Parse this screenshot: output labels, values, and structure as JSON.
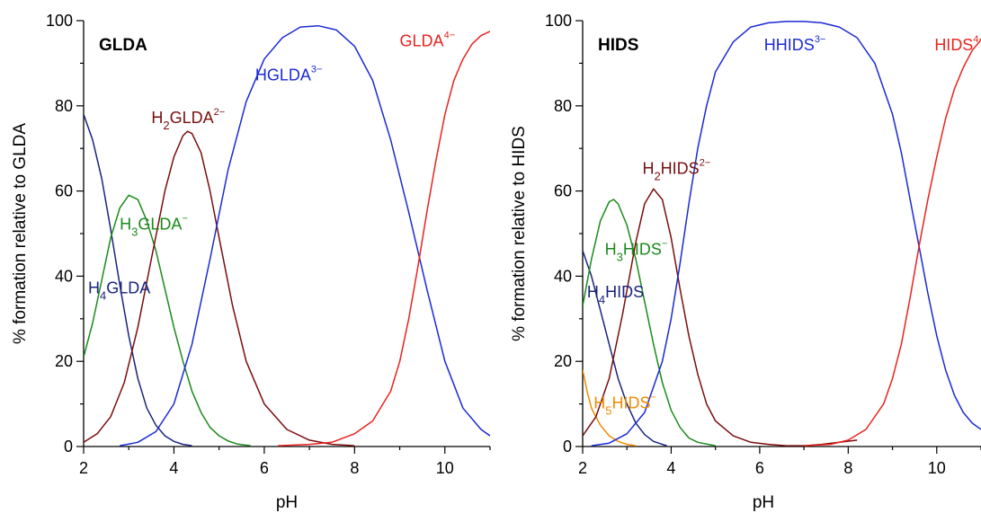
{
  "chart_data": [
    {
      "type": "line",
      "title": "GLDA",
      "xlabel": "pH",
      "ylabel": "% formation relative to GLDA",
      "xlim": [
        2,
        11
      ],
      "ylim": [
        0,
        100
      ],
      "xticks": [
        "2",
        "4",
        "6",
        "8",
        "10"
      ],
      "yticks": [
        "0",
        "20",
        "40",
        "60",
        "80",
        "100"
      ],
      "grid": false,
      "legend": "inline labels",
      "series": [
        {
          "name": "H4GLDA",
          "label_base": "H",
          "label_sub": "4",
          "label_main": "GLDA",
          "label_sup": "",
          "color": "#1a237e",
          "label_at": [
            2.1,
            36
          ],
          "x": [
            2.0,
            2.2,
            2.4,
            2.6,
            2.8,
            3.0,
            3.2,
            3.4,
            3.6,
            3.8,
            4.0,
            4.2,
            4.4
          ],
          "y": [
            78,
            72,
            63,
            51,
            38,
            26,
            16,
            9,
            5,
            2.5,
            1.2,
            0.5,
            0.2
          ]
        },
        {
          "name": "H3GLDA-",
          "label_base": "H",
          "label_sub": "3",
          "label_main": "GLDA",
          "label_sup": "−",
          "color": "#1b8a1b",
          "label_at": [
            2.8,
            51
          ],
          "x": [
            2.0,
            2.2,
            2.4,
            2.6,
            2.8,
            3.0,
            3.2,
            3.4,
            3.6,
            3.8,
            4.0,
            4.2,
            4.4,
            4.6,
            4.8,
            5.0,
            5.2,
            5.4,
            5.7
          ],
          "y": [
            21,
            29,
            39,
            49,
            56,
            59,
            58,
            53,
            46,
            37,
            28,
            20,
            13,
            8,
            4.5,
            2.5,
            1.3,
            0.6,
            0.2
          ]
        },
        {
          "name": "H2GLDA2-",
          "label_base": "H",
          "label_sub": "2",
          "label_main": "GLDA",
          "label_sup": "2−",
          "color": "#7a0d0d",
          "label_at": [
            3.5,
            76
          ],
          "x": [
            2.0,
            2.3,
            2.6,
            2.9,
            3.2,
            3.5,
            3.8,
            4.0,
            4.2,
            4.3,
            4.4,
            4.6,
            4.8,
            5.0,
            5.3,
            5.6,
            6.0,
            6.5,
            7.0,
            7.5,
            8.0
          ],
          "y": [
            1,
            3,
            7,
            15,
            28,
            44,
            60,
            68,
            73,
            74,
            73.5,
            69,
            60,
            49,
            33,
            20,
            10,
            4,
            1.5,
            0.5,
            0.2
          ]
        },
        {
          "name": "HGLDA3-",
          "label_base": "HGLDA",
          "label_sub": "",
          "label_main": "",
          "label_sup": "3−",
          "color": "#1a2ad4",
          "label_at": [
            5.8,
            86
          ],
          "x": [
            2.8,
            3.2,
            3.6,
            4.0,
            4.4,
            4.8,
            5.2,
            5.6,
            6.0,
            6.4,
            6.8,
            7.2,
            7.6,
            8.0,
            8.4,
            8.8,
            9.2,
            9.6,
            10.0,
            10.4,
            10.8,
            11.0
          ],
          "y": [
            0.2,
            1,
            3.5,
            10,
            24,
            44,
            65,
            81,
            91,
            96,
            98.5,
            98.8,
            97.8,
            94,
            86,
            72,
            55,
            37,
            20,
            9,
            4,
            2.5
          ]
        },
        {
          "name": "GLDA4-",
          "label_base": "GLDA",
          "label_sub": "",
          "label_main": "",
          "label_sup": "4−",
          "color": "#e8231e",
          "label_at": [
            9.0,
            94
          ],
          "x": [
            6.3,
            7.0,
            7.5,
            8.0,
            8.4,
            8.8,
            9.0,
            9.2,
            9.4,
            9.6,
            9.8,
            10.0,
            10.2,
            10.4,
            10.6,
            10.8,
            11.0
          ],
          "y": [
            0.2,
            0.5,
            1,
            3,
            6,
            13,
            20,
            30,
            42,
            55,
            67,
            78,
            86,
            91,
            94.5,
            96.5,
            97.5
          ]
        }
      ]
    },
    {
      "type": "line",
      "title": "HIDS",
      "xlabel": "pH",
      "ylabel": "% formation relative to HIDS",
      "xlim": [
        2,
        11
      ],
      "ylim": [
        0,
        100
      ],
      "xticks": [
        "2",
        "4",
        "6",
        "8",
        "10"
      ],
      "yticks": [
        "0",
        "20",
        "40",
        "60",
        "80",
        "100"
      ],
      "grid": false,
      "legend": "inline labels",
      "series": [
        {
          "name": "H5HIDS-",
          "label_base": "H",
          "label_sub": "5",
          "label_main": "HIDS",
          "label_sup": "−",
          "color": "#f08a00",
          "label_at": [
            2.25,
            9
          ],
          "x": [
            2.0,
            2.1,
            2.2,
            2.4,
            2.6,
            2.8,
            3.0,
            3.2
          ],
          "y": [
            18,
            13,
            9,
            5,
            2.5,
            1.2,
            0.5,
            0.2
          ]
        },
        {
          "name": "H4HIDS",
          "label_base": "H",
          "label_sub": "4",
          "label_main": "HIDS",
          "label_sup": "",
          "color": "#1a237e",
          "label_at": [
            2.1,
            35
          ],
          "x": [
            2.0,
            2.2,
            2.4,
            2.6,
            2.8,
            3.0,
            3.2,
            3.4,
            3.6,
            3.8,
            3.9
          ],
          "y": [
            46,
            40,
            32,
            24,
            16,
            10,
            5.5,
            2.8,
            1.2,
            0.5,
            0.2
          ]
        },
        {
          "name": "H3HIDS-",
          "label_base": "H",
          "label_sub": "3",
          "label_main": "HIDS",
          "label_sup": "−",
          "color": "#1b8a1b",
          "label_at": [
            2.5,
            45
          ],
          "x": [
            2.0,
            2.2,
            2.4,
            2.6,
            2.7,
            2.8,
            3.0,
            3.2,
            3.4,
            3.6,
            3.8,
            4.0,
            4.2,
            4.4,
            4.6,
            5.0
          ],
          "y": [
            33,
            44,
            53,
            57.5,
            58,
            57,
            52,
            44,
            34,
            24,
            15,
            8.5,
            4.5,
            2,
            1,
            0.2
          ]
        },
        {
          "name": "H2HIDS2-",
          "label_base": "H",
          "label_sub": "2",
          "label_main": "HIDS",
          "label_sup": "2−",
          "color": "#7a0d0d",
          "label_at": [
            3.35,
            64
          ],
          "x": [
            2.0,
            2.3,
            2.6,
            2.9,
            3.2,
            3.4,
            3.6,
            3.8,
            4.0,
            4.2,
            4.4,
            4.6,
            4.8,
            5.0,
            5.4,
            5.8,
            6.2,
            6.6,
            7.0,
            7.4,
            7.8,
            8.2
          ],
          "y": [
            2.5,
            7,
            16,
            31,
            48,
            57,
            60.5,
            58,
            49,
            37,
            26,
            17,
            10,
            6,
            2.5,
            1,
            0.5,
            0.2,
            0.2,
            0.5,
            1,
            1.5
          ]
        },
        {
          "name": "HHIDS3-",
          "label_base": "HHIDS",
          "label_sub": "",
          "label_main": "",
          "label_sup": "3−",
          "color": "#1a2ad4",
          "label_at": [
            6.1,
            93
          ],
          "x": [
            2.2,
            2.6,
            3.0,
            3.4,
            3.8,
            4.0,
            4.2,
            4.4,
            4.6,
            4.8,
            5.0,
            5.4,
            5.8,
            6.2,
            6.6,
            7.0,
            7.4,
            7.8,
            8.2,
            8.6,
            9.0,
            9.2,
            9.4,
            9.6,
            9.8,
            10.0,
            10.2,
            10.4,
            10.6,
            10.8,
            11.0
          ],
          "y": [
            0.2,
            0.8,
            3,
            8,
            20,
            30,
            43,
            57,
            70,
            80,
            88,
            95,
            98.5,
            99.5,
            99.8,
            99.8,
            99.5,
            98.5,
            96,
            90,
            78,
            69,
            58,
            47,
            36,
            26,
            18,
            12,
            8,
            5.5,
            4
          ]
        },
        {
          "name": "HIDS4-",
          "label_base": "HIDS",
          "label_sub": "",
          "label_main": "",
          "label_sup": "4−",
          "color": "#e8231e",
          "label_at": [
            9.95,
            93
          ],
          "x": [
            7.0,
            7.6,
            8.0,
            8.4,
            8.8,
            9.0,
            9.2,
            9.4,
            9.6,
            9.8,
            10.0,
            10.2,
            10.4,
            10.6,
            10.8,
            11.0
          ],
          "y": [
            0.2,
            0.5,
            1.5,
            4,
            10,
            16,
            24,
            35,
            47,
            58,
            68,
            77,
            84,
            89,
            93,
            95.5
          ]
        }
      ]
    }
  ]
}
